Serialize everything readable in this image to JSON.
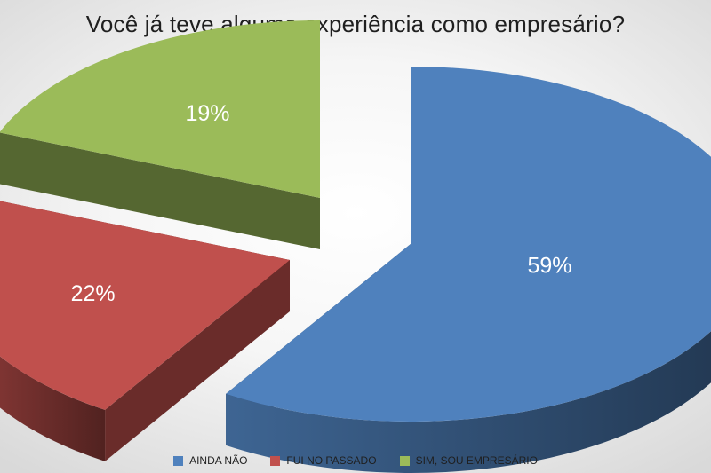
{
  "title": "Você já teve alguma experiência como empresário?",
  "chart_data": {
    "type": "pie",
    "three_d": true,
    "exploded": true,
    "title": "Você já teve alguma experiência como empresário?",
    "legend_position": "bottom",
    "slices": [
      {
        "label": "AINDA NÃO",
        "value": 59,
        "display": "59%",
        "color": "#4f81bd"
      },
      {
        "label": "FUI NO PASSADO",
        "value": 22,
        "display": "22%",
        "color": "#c0504d"
      },
      {
        "label": "SIM, SOU EMPRESÁRIO",
        "value": 19,
        "display": "19%",
        "color": "#9bbb59"
      }
    ]
  }
}
